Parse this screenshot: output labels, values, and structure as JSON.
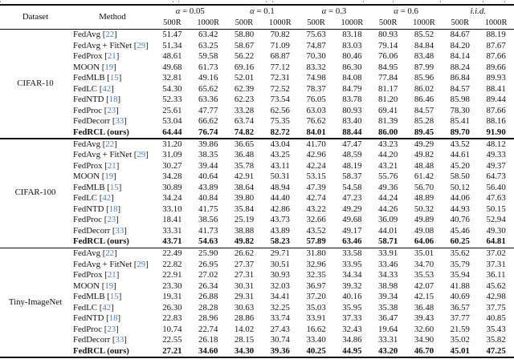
{
  "colors": {
    "citation_blue": "#4a7cc7",
    "rule_black": "#101010",
    "text": "#131313",
    "background": "#fefefe"
  },
  "header": {
    "dataset_label": "Dataset",
    "method_label": "Method",
    "groups": [
      {
        "prefix": "α",
        "suffix": " = 0.05"
      },
      {
        "prefix": "α",
        "suffix": " = 0.1"
      },
      {
        "prefix": "α",
        "suffix": " = 0.3"
      },
      {
        "prefix": "α",
        "suffix": " = 0.6"
      },
      {
        "prefix": "i.i.d.",
        "suffix": ""
      }
    ],
    "round_labels": [
      "500R",
      "1000R"
    ]
  },
  "sections": [
    {
      "dataset": "CIFAR-10",
      "rows": [
        {
          "method": "FedAvg",
          "cite": "22",
          "bold": false,
          "values": [
            "51.47",
            "63.42",
            "58.80",
            "70.82",
            "75.63",
            "83.18",
            "80.93",
            "85.52",
            "84.67",
            "88.19"
          ]
        },
        {
          "method": "FedAvg + FitNet",
          "cite": "29",
          "bold": false,
          "values": [
            "51.34",
            "63.25",
            "58.67",
            "71.09",
            "74.87",
            "83.03",
            "79.14",
            "84.84",
            "84.20",
            "87.67"
          ]
        },
        {
          "method": "FedProx",
          "cite": "21",
          "bold": false,
          "values": [
            "48.61",
            "59.58",
            "56.22",
            "68.87",
            "70.30",
            "80.46",
            "76.06",
            "83.48",
            "84.14",
            "87.66"
          ]
        },
        {
          "method": "MOON",
          "cite": "19",
          "bold": false,
          "values": [
            "49.68",
            "61.73",
            "69.16",
            "77.12",
            "83.32",
            "86.30",
            "84.95",
            "87.99",
            "88.24",
            "89.66"
          ]
        },
        {
          "method": "FedMLB",
          "cite": "15",
          "bold": false,
          "values": [
            "32.81",
            "49.16",
            "52.01",
            "72.31",
            "74.98",
            "84.08",
            "77.84",
            "85.96",
            "86.84",
            "89.93"
          ]
        },
        {
          "method": "FedLC",
          "cite": "42",
          "bold": false,
          "values": [
            "54.30",
            "65.62",
            "62.39",
            "72.52",
            "78.37",
            "84.79",
            "81.17",
            "86.02",
            "84.57",
            "88.41"
          ]
        },
        {
          "method": "FedNTD",
          "cite": "18",
          "bold": false,
          "values": [
            "52.33",
            "63.36",
            "62.23",
            "73.54",
            "76.05",
            "83.78",
            "81.20",
            "86.46",
            "85.98",
            "89.44"
          ]
        },
        {
          "method": "FedProc",
          "cite": "23",
          "bold": false,
          "values": [
            "25.61",
            "47.77",
            "33.28",
            "62.56",
            "63.03",
            "80.93",
            "69.41",
            "84.57",
            "78.30",
            "87.66"
          ]
        },
        {
          "method": "FedDecorr",
          "cite": "33",
          "bold": false,
          "values": [
            "53.04",
            "66.62",
            "63.74",
            "75.35",
            "76.62",
            "83.40",
            "81.39",
            "85.28",
            "85.41",
            "88.16"
          ]
        },
        {
          "method": "FedRCL (ours)",
          "cite": null,
          "bold": true,
          "values": [
            "64.44",
            "76.74",
            "74.82",
            "82.72",
            "84.01",
            "88.44",
            "86.00",
            "89.45",
            "89.70",
            "91.90"
          ]
        }
      ]
    },
    {
      "dataset": "CIFAR-100",
      "rows": [
        {
          "method": "FedAvg",
          "cite": "22",
          "bold": false,
          "values": [
            "31.20",
            "39.86",
            "36.65",
            "43.04",
            "41.70",
            "47.47",
            "43.23",
            "49.29",
            "43.52",
            "48.12"
          ]
        },
        {
          "method": "FedAvg + FitNet",
          "cite": "29",
          "bold": false,
          "values": [
            "31.09",
            "38.35",
            "36.48",
            "43.25",
            "42.96",
            "48.59",
            "44.20",
            "49.82",
            "44.61",
            "49.33"
          ]
        },
        {
          "method": "FedProx",
          "cite": "21",
          "bold": false,
          "values": [
            "30.27",
            "39.44",
            "35.78",
            "43.11",
            "42.24",
            "48.19",
            "43.21",
            "48.48",
            "45.20",
            "49.37"
          ]
        },
        {
          "method": "MOON",
          "cite": "19",
          "bold": false,
          "values": [
            "34.28",
            "40.64",
            "42.91",
            "50.31",
            "53.15",
            "58.37",
            "55.76",
            "61.42",
            "58.50",
            "64.73"
          ]
        },
        {
          "method": "FedMLB",
          "cite": "15",
          "bold": false,
          "values": [
            "30.89",
            "43.89",
            "38.64",
            "48.94",
            "47.39",
            "54.58",
            "49.36",
            "56.70",
            "50.12",
            "56.40"
          ]
        },
        {
          "method": "FedLC",
          "cite": "42",
          "bold": false,
          "values": [
            "34.24",
            "40.84",
            "39.80",
            "44.40",
            "42.74",
            "47.23",
            "44.24",
            "48.89",
            "44.06",
            "47.63"
          ]
        },
        {
          "method": "FedNTD",
          "cite": "18",
          "bold": false,
          "values": [
            "33.10",
            "41.75",
            "35.84",
            "42.86",
            "43.22",
            "49.29",
            "44.26",
            "50.32",
            "44.93",
            "50.15"
          ]
        },
        {
          "method": "FedProc",
          "cite": "23",
          "bold": false,
          "values": [
            "18.41",
            "38.56",
            "25.19",
            "43.73",
            "32.66",
            "49.68",
            "36.09",
            "49.89",
            "40.76",
            "52.94"
          ]
        },
        {
          "method": "FedDecorr",
          "cite": "33",
          "bold": false,
          "values": [
            "33.31",
            "41.73",
            "38.88",
            "43.89",
            "43.52",
            "49.17",
            "44.01",
            "49.08",
            "45.46",
            "49.30"
          ]
        },
        {
          "method": "FedRCL (ours)",
          "cite": null,
          "bold": true,
          "values": [
            "43.71",
            "54.63",
            "49.82",
            "58.23",
            "57.89",
            "63.46",
            "58.71",
            "64.06",
            "60.25",
            "64.81"
          ]
        }
      ]
    },
    {
      "dataset": "Tiny-ImageNet",
      "rows": [
        {
          "method": "FedAvg",
          "cite": "22",
          "bold": false,
          "values": [
            "22.49",
            "25.90",
            "26.62",
            "29.71",
            "31.80",
            "33.58",
            "33.91",
            "35.01",
            "35.62",
            "37.02"
          ]
        },
        {
          "method": "FedAvg + FitNet",
          "cite": "29",
          "bold": false,
          "values": [
            "22.82",
            "26.95",
            "27.37",
            "30.51",
            "32.96",
            "33.95",
            "33.46",
            "34.70",
            "35.79",
            "37.31"
          ]
        },
        {
          "method": "FedProx",
          "cite": "21",
          "bold": false,
          "values": [
            "22.91",
            "27.02",
            "27.31",
            "30.93",
            "32.35",
            "34.34",
            "34.33",
            "35.53",
            "35.94",
            "36.11"
          ]
        },
        {
          "method": "MOON",
          "cite": "19",
          "bold": false,
          "values": [
            "23.30",
            "26.34",
            "30.31",
            "32.03",
            "36.97",
            "39.32",
            "38.98",
            "42.07",
            "41.88",
            "45.62"
          ]
        },
        {
          "method": "FedMLB",
          "cite": "15",
          "bold": false,
          "values": [
            "19.31",
            "26.88",
            "29.31",
            "34.41",
            "37.20",
            "40.16",
            "39.34",
            "42.15",
            "40.69",
            "42.98"
          ]
        },
        {
          "method": "FedLC",
          "cite": "42",
          "bold": false,
          "values": [
            "26.30",
            "28.28",
            "30.63",
            "32.25",
            "35.03",
            "35.95",
            "35.38",
            "36.48",
            "36.57",
            "37.75"
          ]
        },
        {
          "method": "FedNTD",
          "cite": "18",
          "bold": false,
          "values": [
            "22.83",
            "28.96",
            "28.86",
            "33.74",
            "33.91",
            "37.33",
            "36.47",
            "39.43",
            "37.77",
            "40.85"
          ]
        },
        {
          "method": "FedProc",
          "cite": "23",
          "bold": false,
          "values": [
            "10.74",
            "22.74",
            "14.02",
            "27.43",
            "16.62",
            "32.43",
            "19.64",
            "32.60",
            "21.59",
            "35.43"
          ]
        },
        {
          "method": "FedDecorr",
          "cite": "33",
          "bold": false,
          "values": [
            "22.55",
            "26.18",
            "28.15",
            "30.74",
            "33.40",
            "34.86",
            "33.31",
            "34.90",
            "35.02",
            "35.82"
          ]
        },
        {
          "method": "FedRCL (ours)",
          "cite": null,
          "bold": true,
          "values": [
            "27.21",
            "34.60",
            "34.30",
            "39.36",
            "40.25",
            "44.95",
            "43.20",
            "46.70",
            "45.01",
            "47.25"
          ]
        }
      ]
    }
  ]
}
